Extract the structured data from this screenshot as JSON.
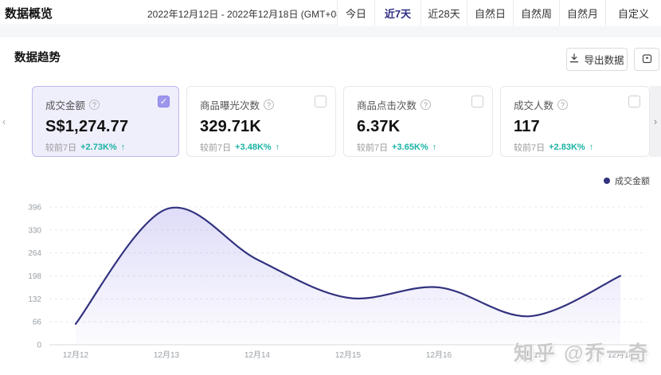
{
  "header": {
    "title": "数据概览",
    "date_range": "2022年12月12日 - 2022年12月18日 (GMT+08:00)",
    "tabs": [
      "今日",
      "近7天",
      "近28天",
      "自然日",
      "自然周",
      "自然月",
      "自定义"
    ],
    "active_tab_index": 1
  },
  "toolbar": {
    "section_title": "数据趋势",
    "export_label": "导出数据"
  },
  "carousel": {
    "prev": "‹",
    "next": "›"
  },
  "icons": {
    "help": "?",
    "up_arrow": "↑",
    "check": "✓"
  },
  "metric_cards": [
    {
      "title": "成交金额",
      "value": "S$1,274.77",
      "compare_label": "较前7日",
      "delta": "+2.73K%",
      "trend": "up",
      "selected": true
    },
    {
      "title": "商品曝光次数",
      "value": "329.71K",
      "compare_label": "较前7日",
      "delta": "+3.48K%",
      "trend": "up",
      "selected": false
    },
    {
      "title": "商品点击次数",
      "value": "6.37K",
      "compare_label": "较前7日",
      "delta": "+3.65K%",
      "trend": "up",
      "selected": false
    },
    {
      "title": "成交人数",
      "value": "117",
      "compare_label": "较前7日",
      "delta": "+2.83K%",
      "trend": "up",
      "selected": false
    }
  ],
  "legend": {
    "label": "成交金额"
  },
  "chart_data": {
    "type": "area",
    "x_labels": [
      "12月12",
      "12月13",
      "12月14",
      "12月15",
      "12月16",
      "12月17",
      "12月18"
    ],
    "values": [
      60,
      390,
      245,
      135,
      165,
      82,
      198
    ],
    "y_ticks": [
      0,
      66,
      132,
      198,
      264,
      330,
      396
    ],
    "ylim": [
      0,
      396
    ],
    "series_name": "成交金额",
    "legend_position": "top-right",
    "grid": "dashed-horizontal",
    "line_color": "#32327f",
    "fill_color": "#6c63e0"
  },
  "watermark": "知乎 @乔一奇"
}
